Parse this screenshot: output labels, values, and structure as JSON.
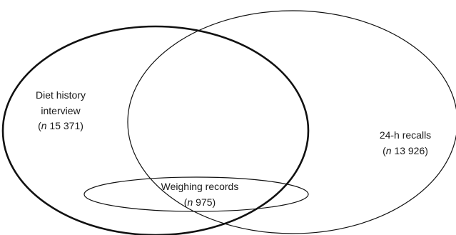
{
  "diagram": {
    "type": "venn",
    "colors": {
      "stroke": "#111111",
      "text": "#1a1a1a",
      "background": "#ffffff"
    },
    "sets": {
      "diet_history": {
        "label_line1": "Diet history",
        "label_line2": "interview",
        "n_prefix": "n",
        "n_value": "15 371"
      },
      "recalls_24h": {
        "label_line1": "24-h recalls",
        "n_prefix": "n",
        "n_value": "13 926"
      },
      "weighing_records": {
        "label_line1": "Weighing records",
        "n_prefix": "n",
        "n_value": "975"
      }
    }
  }
}
